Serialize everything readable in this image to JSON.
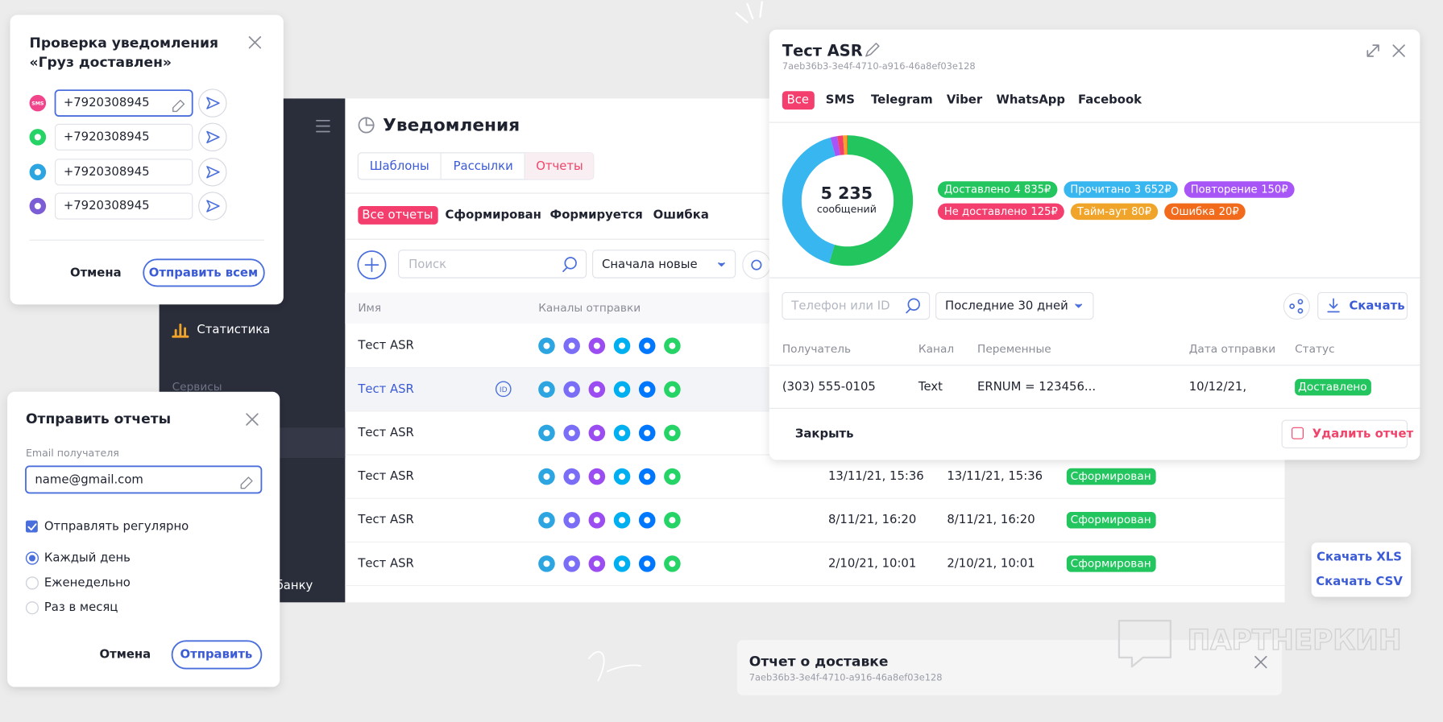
{
  "check_dialog": {
    "title_line1": "Проверка уведомления",
    "title_line2": "«Груз доставлен»",
    "sms_badge": "SMS",
    "phones": [
      "+7920308945",
      "+7920308945",
      "+7920308945",
      "+7920308945"
    ],
    "cancel": "Отмена",
    "send_all": "Отправить всем"
  },
  "app": {
    "sidebar": {
      "stats": "Статистика",
      "services": "Сервисы",
      "bank": "банку"
    },
    "title": "Уведомления",
    "tabs": [
      "Шаблоны",
      "Рассылки",
      "Отчеты"
    ],
    "filters": [
      "Все отчеты",
      "Сформирован",
      "Формируется",
      "Ошибка"
    ],
    "search_placeholder": "Поиск",
    "sort": "Сначала новые",
    "columns": [
      "Имя",
      "Каналы отправки"
    ],
    "id_badge": "ID",
    "rows": [
      {
        "name": "Тест ASR"
      },
      {
        "name": "Тест ASR"
      },
      {
        "name": "Тест ASR"
      },
      {
        "name": "Тест ASR",
        "created": "13/11/21, 15:36",
        "sent": "13/11/21, 15:36",
        "status": "Сформирован"
      },
      {
        "name": "Тест ASR",
        "created": "8/11/21, 16:20",
        "sent": "8/11/21, 16:20",
        "status": "Сформирован"
      },
      {
        "name": "Тест ASR",
        "created": "2/10/21, 10:01",
        "sent": "2/10/21, 10:01",
        "status": "Сформирован"
      }
    ]
  },
  "report": {
    "title": "Тест ASR",
    "id": "7aeb36b3-3e4f-4710-a916-46a8ef03e128",
    "tabs": [
      "Все",
      "SMS",
      "Telegram",
      "Viber",
      "WhatsApp",
      "Facebook"
    ],
    "total": "5 235",
    "total_caption": "сообщений",
    "stats": [
      {
        "name": "Доставлено",
        "value": 4835,
        "value_label": "4 835₽",
        "color": "#22c55e"
      },
      {
        "name": "Прочитано",
        "value": 3652,
        "value_label": "3 652₽",
        "color": "#38b6f0"
      },
      {
        "name": "Повторение",
        "value": 150,
        "value_label": "150₽",
        "color": "#a855f7"
      },
      {
        "name": "Не доставлено",
        "value": 125,
        "value_label": "125₽",
        "color": "#f43f6e"
      },
      {
        "name": "Тайм-аут",
        "value": 80,
        "value_label": "80₽",
        "color": "#f0a52a"
      },
      {
        "name": "Ошибка",
        "value": 20,
        "value_label": "20₽",
        "color": "#f26a1b"
      }
    ],
    "phone_placeholder": "Телефон или ID",
    "period": "Последние 30 дней",
    "download": "Скачать",
    "columns": [
      "Получатель",
      "Канал",
      "Переменные",
      "Дата отправки",
      "Статус"
    ],
    "row": [
      "(303) 555-0105",
      "Text",
      "ERNUM = 123456...",
      "10/12/21,",
      "Доставлено"
    ],
    "close": "Закрыть",
    "delete": "Удалить отчет"
  },
  "send_dialog": {
    "title": "Отправить отчеты",
    "email_label": "Email получателя",
    "email": "name@gmail.com",
    "regular": "Отправлять регулярно",
    "options": [
      "Каждый день",
      "Еженедельно",
      "Раз в месяц"
    ],
    "cancel": "Отмена",
    "send": "Отправить"
  },
  "download_menu": [
    "Скачать XLS",
    "Скачать CSV"
  ],
  "toast": {
    "title": "Отчет о доставке",
    "id": "7aeb36b3-3e4f-4710-a916-46a8ef03e128"
  },
  "watermark": "ПАРТНЕРКИН"
}
